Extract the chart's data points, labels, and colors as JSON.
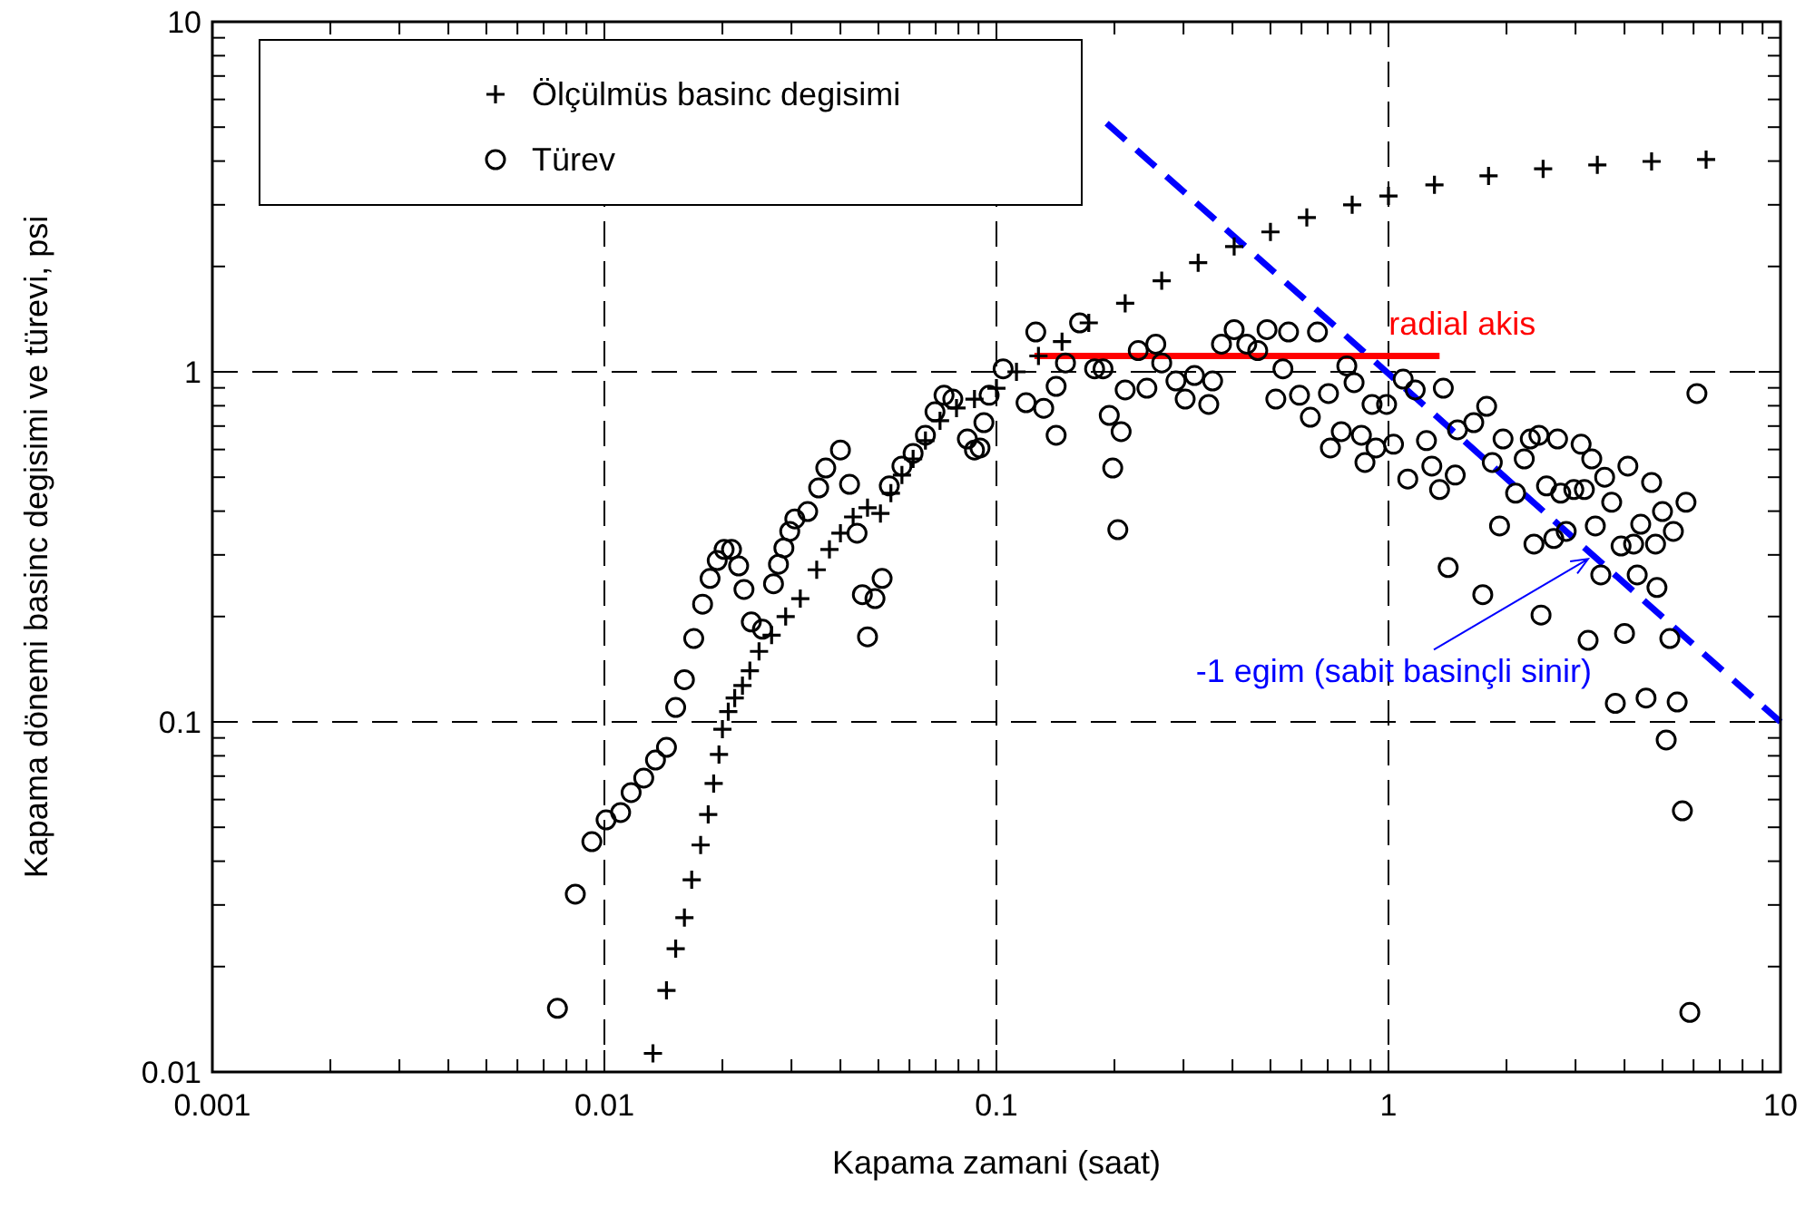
{
  "chart_data": {
    "type": "scatter",
    "xlabel": "Kapama zamani (saat)",
    "ylabel": "Kapama dönemi basinc degisimi ve türevi, psi",
    "log": "xy",
    "grid": true,
    "legend": "top left",
    "xlim": [
      0.001,
      10
    ],
    "ylim": [
      0.01,
      10
    ],
    "xticks": [
      0.001,
      {
        "value": 0.002,
        "label": null
      },
      {
        "value": 0.003,
        "label": null
      },
      {
        "value": 0.004,
        "label": null
      },
      {
        "value": 0.005,
        "label": null
      },
      {
        "value": 0.006,
        "label": null
      },
      {
        "value": 0.007,
        "label": null
      },
      {
        "value": 0.008,
        "label": null
      },
      {
        "value": 0.009,
        "label": null
      },
      0.01,
      {
        "value": 0.02,
        "label": null
      },
      {
        "value": 0.03,
        "label": null
      },
      {
        "value": 0.04,
        "label": null
      },
      {
        "value": 0.05,
        "label": null
      },
      {
        "value": 0.06,
        "label": null
      },
      {
        "value": 0.07,
        "label": null
      },
      {
        "value": 0.08,
        "label": null
      },
      {
        "value": 0.09,
        "label": null
      },
      0.1,
      {
        "value": 0.2,
        "label": null
      },
      {
        "value": 0.3,
        "label": null
      },
      {
        "value": 0.4,
        "label": null
      },
      {
        "value": 0.5,
        "label": null
      },
      {
        "value": 0.6,
        "label": null
      },
      {
        "value": 0.7,
        "label": null
      },
      {
        "value": 0.8,
        "label": null
      },
      {
        "value": 0.9,
        "label": null
      },
      1,
      {
        "value": 2,
        "label": null
      },
      {
        "value": 3,
        "label": null
      },
      {
        "value": 4,
        "label": null
      },
      {
        "value": 5,
        "label": null
      },
      {
        "value": 6,
        "label": null
      },
      {
        "value": 7,
        "label": null
      },
      {
        "value": 8,
        "label": null
      },
      {
        "value": 9,
        "label": null
      },
      10
    ],
    "yticks": [
      0.01,
      {
        "value": 0.02,
        "label": null
      },
      {
        "value": 0.03,
        "label": null
      },
      {
        "value": 0.04,
        "label": null
      },
      {
        "value": 0.05,
        "label": null
      },
      {
        "value": 0.06,
        "label": null
      },
      {
        "value": 0.07,
        "label": null
      },
      {
        "value": 0.08,
        "label": null
      },
      {
        "value": 0.09,
        "label": null
      },
      0.1,
      {
        "value": 0.2,
        "label": null
      },
      {
        "value": 0.3,
        "label": null
      },
      {
        "value": 0.4,
        "label": null
      },
      {
        "value": 0.5,
        "label": null
      },
      {
        "value": 0.6,
        "label": null
      },
      {
        "value": 0.7,
        "label": null
      },
      {
        "value": 0.8,
        "label": null
      },
      {
        "value": 0.9,
        "label": null
      },
      1,
      {
        "value": 2,
        "label": null
      },
      {
        "value": 3,
        "label": null
      },
      {
        "value": 4,
        "label": null
      },
      {
        "value": 5,
        "label": null
      },
      {
        "value": 6,
        "label": null
      },
      {
        "value": 7,
        "label": null
      },
      {
        "value": 8,
        "label": null
      },
      {
        "value": 9,
        "label": null
      },
      10
    ],
    "series": [
      {
        "name": "Ölçülmüs basinc degisimi",
        "type": "scatter",
        "marker": "cross",
        "color": "#000000",
        "x": [
          0.0133,
          0.0144,
          0.0152,
          0.016,
          0.0167,
          0.0176,
          0.0184,
          0.019,
          0.0196,
          0.02,
          0.0207,
          0.0215,
          0.0225,
          0.0235,
          0.0248,
          0.0267,
          0.029,
          0.0316,
          0.0348,
          0.0375,
          0.04,
          0.0431,
          0.0469,
          0.0506,
          0.0538,
          0.0574,
          0.0613,
          0.0659,
          0.0718,
          0.0791,
          0.0879,
          0.1,
          0.1125,
          0.128,
          0.147,
          0.172,
          0.213,
          0.264,
          0.327,
          0.404,
          0.5,
          0.619,
          0.808,
          1,
          1.31,
          1.8,
          2.48,
          3.41,
          4.69,
          6.46
        ],
        "values": [
          0.0113,
          0.0171,
          0.0225,
          0.0276,
          0.0354,
          0.0445,
          0.0544,
          0.0667,
          0.0807,
          0.0953,
          0.107,
          0.117,
          0.127,
          0.14,
          0.159,
          0.177,
          0.2,
          0.225,
          0.272,
          0.311,
          0.346,
          0.385,
          0.409,
          0.394,
          0.45,
          0.507,
          0.564,
          0.636,
          0.725,
          0.788,
          0.836,
          0.898,
          1.0,
          1.11,
          1.22,
          1.38,
          1.57,
          1.82,
          2.05,
          2.28,
          2.51,
          2.76,
          3.0,
          3.18,
          3.42,
          3.63,
          3.8,
          3.9,
          3.99,
          4.04
        ]
      },
      {
        "name": "Türev",
        "type": "scatter",
        "marker": "circle",
        "color": "#000000",
        "x": [
          0.00759,
          0.00843,
          0.00929,
          0.0101,
          0.011,
          0.0117,
          0.0126,
          0.0135,
          0.0144,
          0.0152,
          0.016,
          0.0169,
          0.0178,
          0.0186,
          0.0194,
          0.0202,
          0.0211,
          0.022,
          0.0227,
          0.0237,
          0.0253,
          0.027,
          0.0278,
          0.0287,
          0.0297,
          0.0306,
          0.033,
          0.0352,
          0.0367,
          0.04,
          0.0422,
          0.0441,
          0.0455,
          0.0469,
          0.049,
          0.0511,
          0.0533,
          0.0574,
          0.0613,
          0.0659,
          0.0697,
          0.0735,
          0.0774,
          0.0843,
          0.0879,
          0.0908,
          0.0929,
          0.0958,
          0.104,
          0.119,
          0.126,
          0.132,
          0.142,
          0.142,
          0.15,
          0.163,
          0.178,
          0.187,
          0.194,
          0.198,
          0.208,
          0.204,
          0.213,
          0.23,
          0.242,
          0.255,
          0.264,
          0.287,
          0.303,
          0.32,
          0.348,
          0.356,
          0.375,
          0.404,
          0.435,
          0.464,
          0.49,
          0.516,
          0.538,
          0.556,
          0.593,
          0.632,
          0.659,
          0.703,
          0.711,
          0.758,
          0.783,
          0.817,
          0.853,
          0.871,
          0.908,
          0.929,
          0.989,
          1.03,
          1.09,
          1.12,
          1.17,
          1.25,
          1.29,
          1.35,
          1.38,
          1.42,
          1.48,
          1.5,
          1.65,
          1.74,
          1.78,
          1.84,
          1.92,
          1.96,
          2.11,
          2.22,
          2.3,
          2.35,
          2.42,
          2.45,
          2.53,
          2.64,
          2.7,
          2.75,
          2.84,
          2.97,
          3.1,
          3.16,
          3.23,
          3.3,
          3.37,
          3.48,
          3.56,
          3.71,
          3.79,
          3.92,
          4.0,
          4.08,
          4.22,
          4.31,
          4.4,
          4.54,
          4.69,
          4.8,
          4.84,
          5.0,
          5.11,
          5.22,
          5.33,
          5.45,
          5.62,
          5.74,
          5.87,
          6.12
        ],
        "values": [
          0.0152,
          0.0322,
          0.0455,
          0.0525,
          0.0551,
          0.0628,
          0.0691,
          0.0778,
          0.0846,
          0.11,
          0.132,
          0.173,
          0.217,
          0.257,
          0.289,
          0.311,
          0.311,
          0.279,
          0.239,
          0.193,
          0.184,
          0.248,
          0.282,
          0.314,
          0.35,
          0.38,
          0.399,
          0.466,
          0.531,
          0.598,
          0.477,
          0.346,
          0.231,
          0.175,
          0.225,
          0.257,
          0.472,
          0.538,
          0.585,
          0.659,
          0.769,
          0.857,
          0.836,
          0.643,
          0.598,
          0.606,
          0.716,
          0.857,
          1.02,
          0.816,
          1.3,
          0.787,
          0.909,
          0.659,
          1.06,
          1.38,
          1.02,
          1.02,
          0.751,
          0.531,
          0.675,
          0.354,
          0.888,
          1.15,
          0.898,
          1.2,
          1.06,
          0.942,
          0.836,
          0.976,
          0.807,
          0.942,
          1.2,
          1.32,
          1.2,
          1.15,
          1.32,
          0.836,
          1.02,
          1.3,
          0.857,
          0.742,
          1.3,
          0.867,
          0.606,
          0.675,
          1.04,
          0.931,
          0.659,
          0.551,
          0.807,
          0.606,
          0.807,
          0.621,
          0.953,
          0.494,
          0.888,
          0.636,
          0.538,
          0.461,
          0.898,
          0.276,
          0.507,
          0.683,
          0.716,
          0.231,
          0.797,
          0.551,
          0.363,
          0.643,
          0.45,
          0.564,
          0.643,
          0.322,
          0.659,
          0.202,
          0.472,
          0.334,
          0.643,
          0.45,
          0.35,
          0.461,
          0.621,
          0.461,
          0.171,
          0.564,
          0.363,
          0.263,
          0.5,
          0.424,
          0.113,
          0.318,
          0.179,
          0.538,
          0.322,
          0.263,
          0.367,
          0.117,
          0.483,
          0.322,
          0.242,
          0.399,
          0.0888,
          0.173,
          0.35,
          0.114,
          0.0557,
          0.424,
          0.0148,
          0.867
        ]
      },
      {
        "name": "radial akis",
        "type": "line",
        "line_style": "solid",
        "color": "#ff0000",
        "x": [
          0.125,
          1.35
        ],
        "values": [
          1.11,
          1.11
        ]
      },
      {
        "type": "line",
        "line_style": "dashed",
        "color": "#0000ff",
        "x": [
          0.191,
          10
        ],
        "values": [
          5.13,
          0.1
        ]
      }
    ],
    "annotations": [
      {
        "text": "-1 egim (sabit basinçli sinir)",
        "x": 3.23,
        "y": 0.292
      }
    ]
  }
}
